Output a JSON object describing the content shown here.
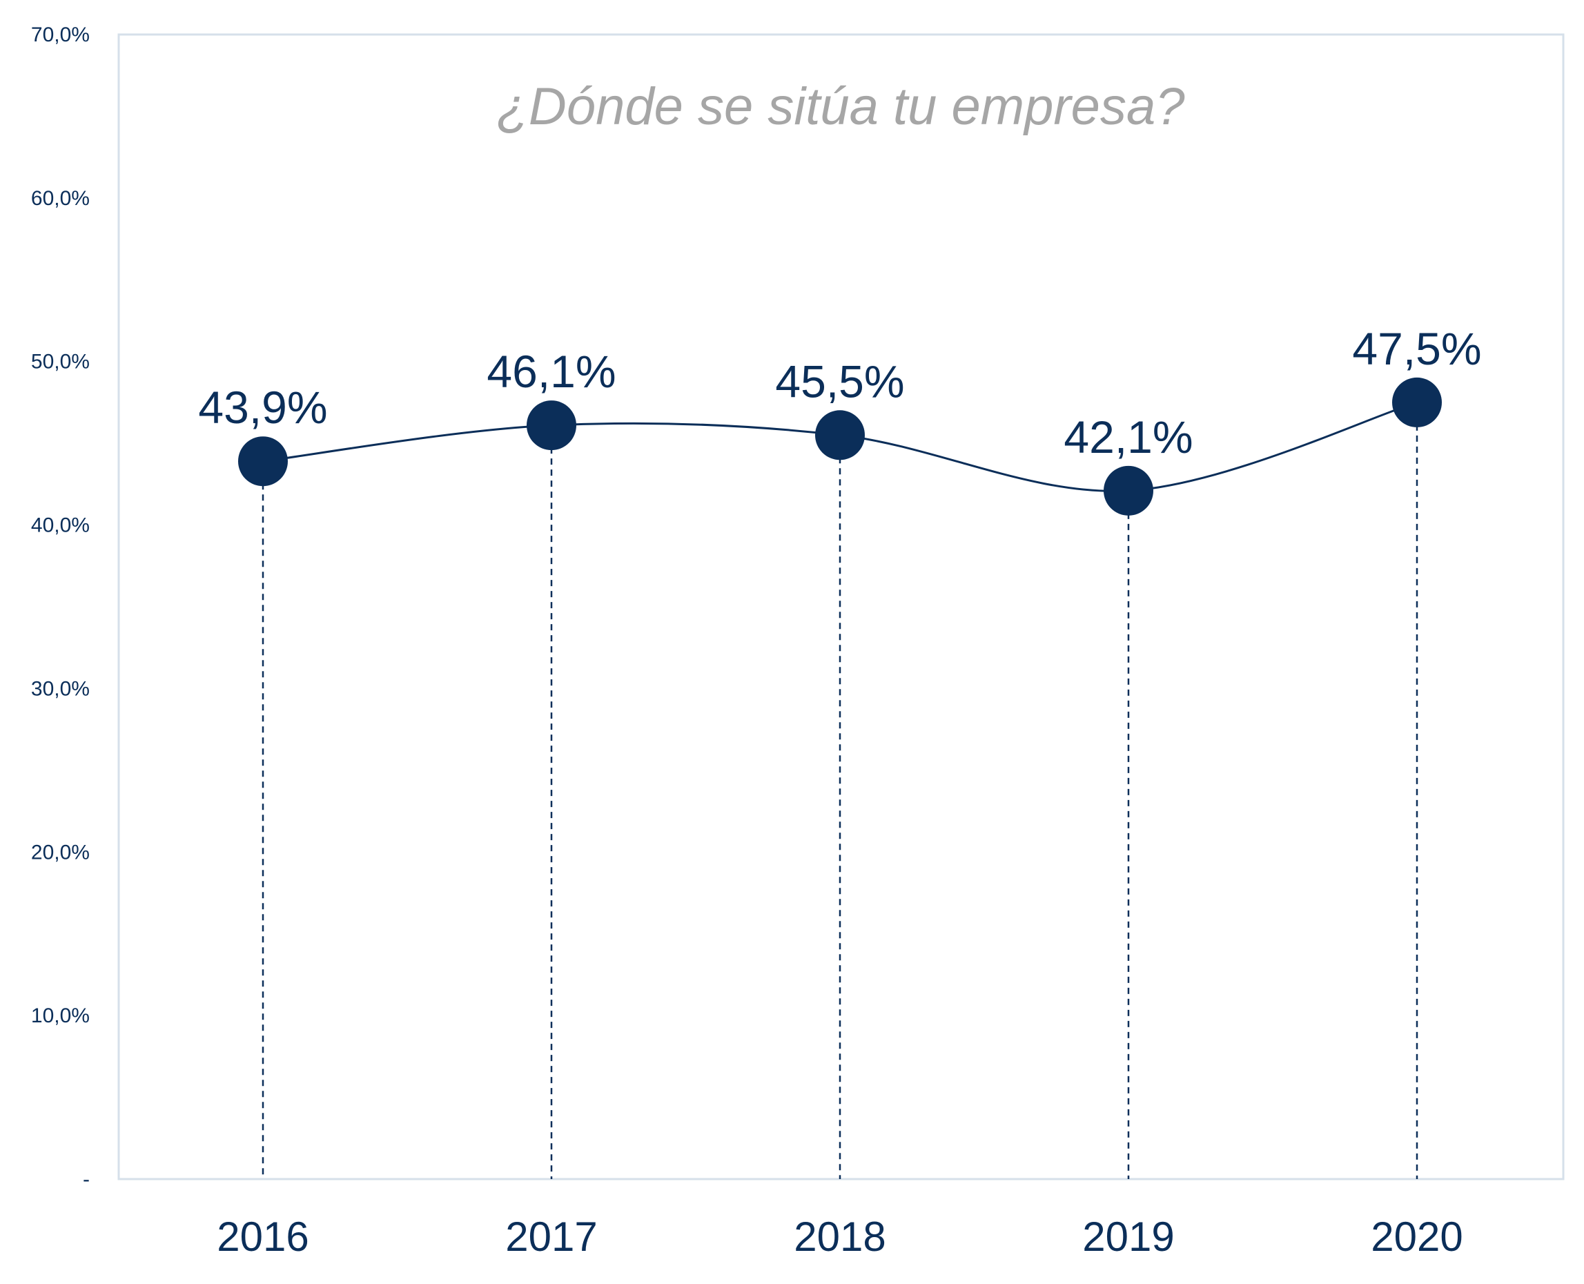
{
  "chart_data": {
    "type": "line",
    "title": "¿Dónde se sitúa tu empresa?",
    "xlabel": "",
    "ylabel": "",
    "categories": [
      "2016",
      "2017",
      "2018",
      "2019",
      "2020"
    ],
    "values": [
      43.9,
      46.1,
      45.5,
      42.1,
      47.5
    ],
    "data_labels": [
      "43,9%",
      "46,1%",
      "45,5%",
      "42,1%",
      "47,5%"
    ],
    "ylim": [
      0,
      70
    ],
    "yticks": [
      0,
      10,
      20,
      30,
      40,
      50,
      60,
      70
    ],
    "ytick_labels": [
      "-",
      "10,0%",
      "20,0%",
      "30,0%",
      "40,0%",
      "50,0%",
      "60,0%",
      "70,0%"
    ],
    "grid": false,
    "legend": "none",
    "drop_lines": true,
    "smooth": true,
    "colors": {
      "series": "#0b2e59",
      "title": "#a6a6a6",
      "plot_border": "#d6e0ea",
      "text": "#0b2e59"
    }
  }
}
